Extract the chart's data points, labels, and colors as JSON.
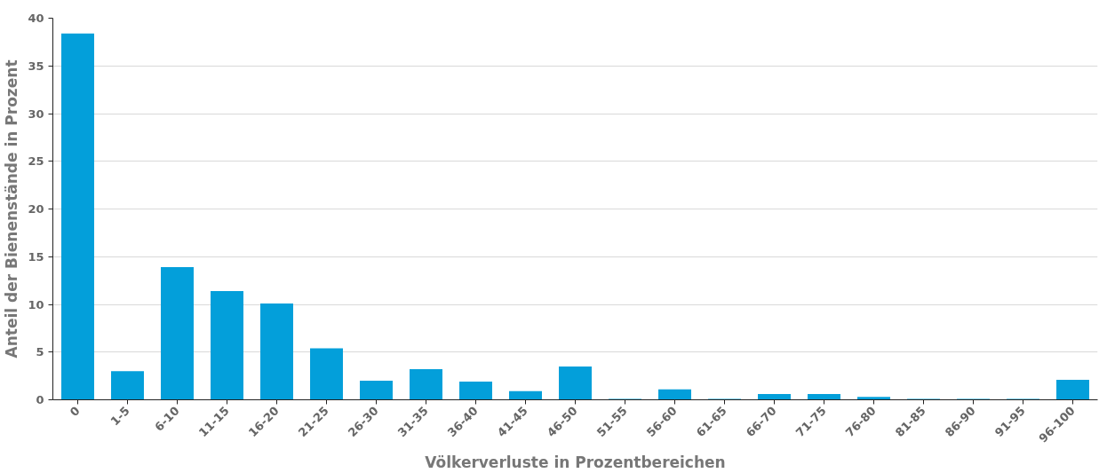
{
  "chart_data": {
    "type": "bar",
    "xlabel": "Völkerverluste in Prozentbereichen",
    "ylabel": "Anteil der Bienenstände in Prozent",
    "categories": [
      "0",
      "1-5",
      "6-10",
      "11-15",
      "16-20",
      "21-25",
      "26-30",
      "31-35",
      "36-40",
      "41-45",
      "46-50",
      "51-55",
      "56-60",
      "61-65",
      "66-70",
      "71-75",
      "76-80",
      "81-85",
      "86-90",
      "91-95",
      "96-100"
    ],
    "values": [
      38.4,
      3.0,
      13.9,
      11.4,
      10.1,
      5.4,
      2.0,
      3.2,
      1.9,
      0.9,
      3.5,
      0.1,
      1.1,
      0.1,
      0.6,
      0.6,
      0.3,
      0.1,
      0.1,
      0.1,
      2.1
    ],
    "color": "#039fda",
    "ylim": [
      0,
      40
    ],
    "yticks": [
      0,
      5,
      10,
      15,
      20,
      25,
      30,
      35,
      40
    ],
    "grid": "y"
  }
}
